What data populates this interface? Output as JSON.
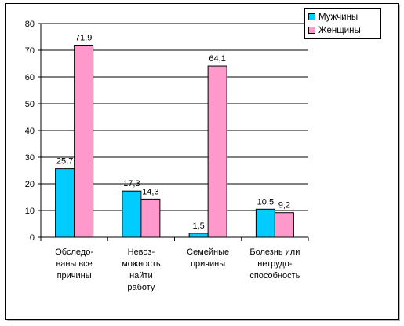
{
  "chart_data": {
    "type": "bar",
    "categories": [
      [
        "Обследо-",
        "ваны все",
        "причины"
      ],
      [
        "Невоз-",
        "можность",
        "найти",
        "работу"
      ],
      [
        "Семейные",
        "причины"
      ],
      [
        "Болезнь или",
        "нетрудо-",
        "способность"
      ]
    ],
    "series": [
      {
        "name": "Мужчины",
        "color": "#00ccff",
        "values": [
          25.7,
          17.3,
          1.5,
          10.5
        ],
        "labels": [
          "25,7",
          "17,3",
          "1,5",
          "10,5"
        ]
      },
      {
        "name": "Женщины",
        "color": "#ff99cc",
        "values": [
          71.9,
          14.3,
          64.1,
          9.2
        ],
        "labels": [
          "71,9",
          "14,3",
          "64,1",
          "9,2"
        ]
      }
    ],
    "ylim": [
      0,
      80
    ],
    "yticks": [
      0,
      10,
      20,
      30,
      40,
      50,
      60,
      70,
      80
    ],
    "grid": true,
    "legend_position": "top-right",
    "title": "",
    "xlabel": "",
    "ylabel": ""
  }
}
